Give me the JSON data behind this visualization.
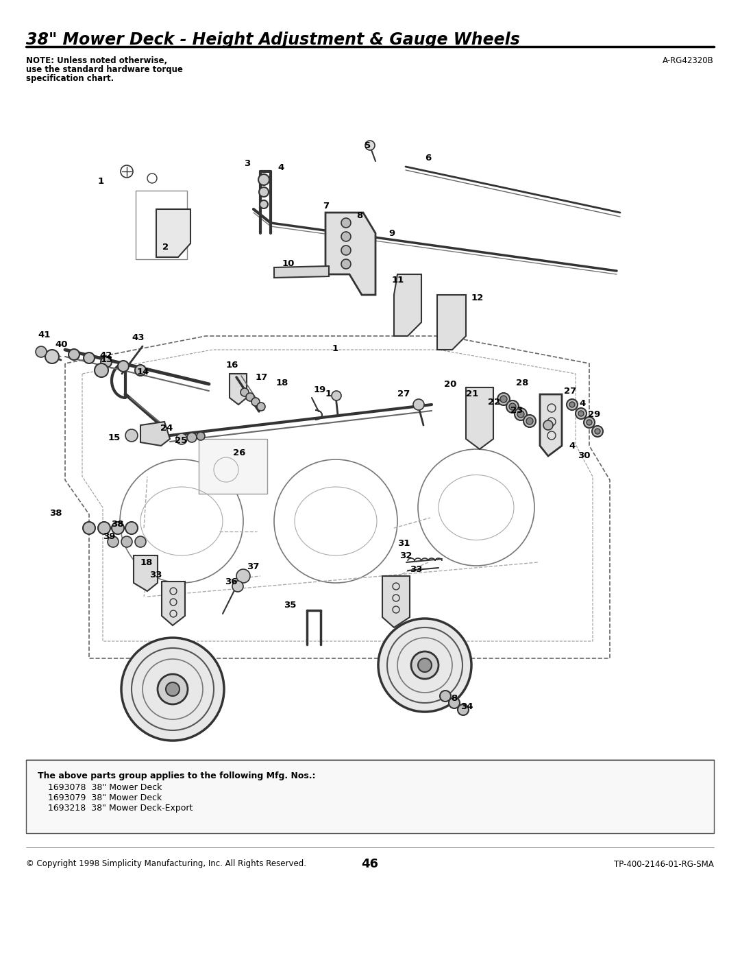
{
  "title": "38\" Mower Deck - Height Adjustment & Gauge Wheels",
  "title_fontsize": 17,
  "title_style": "italic",
  "title_weight": "bold",
  "note_text": "NOTE: Unless noted otherwise,\nuse the standard hardware torque\nspecification chart.",
  "note_fontsize": 8.5,
  "ref_number": "A-RG42320B",
  "ref_fontsize": 8.5,
  "page_number": "46",
  "copyright_text": "© Copyright 1998 Simplicity Manufacturing, Inc. All Rights Reserved.",
  "tp_text": "TP-400-2146-01-RG-SMA",
  "footer_fontsize": 8.5,
  "parts_header": "The above parts group applies to the following Mfg. Nos.:",
  "parts_list": [
    "1693078  38\" Mower Deck",
    "1693079  38\" Mower Deck",
    "1693218  38\" Mower Deck-Export"
  ],
  "parts_fontsize": 8.5,
  "bg_color": "#ffffff",
  "text_color": "#000000",
  "line_color": "#000000"
}
